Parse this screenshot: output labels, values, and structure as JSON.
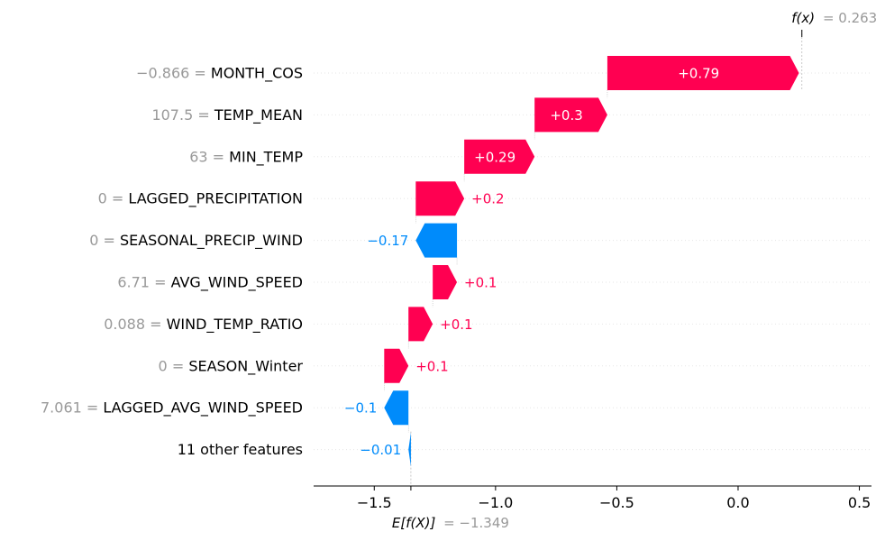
{
  "chart_data": {
    "type": "waterfall",
    "base_value": -1.349,
    "output_value": 0.263,
    "fx_label": "f(x)",
    "fx_value_text": "= 0.263",
    "ex_label": "E[f(X)]",
    "ex_value_text": "= −1.349",
    "xlim": [
      -1.75,
      0.55
    ],
    "xticks": [
      -1.5,
      -1.0,
      -0.5,
      0.0,
      0.5
    ],
    "xtick_labels": [
      "−1.5",
      "−1.0",
      "−0.5",
      "0.0",
      "0.5"
    ],
    "features": [
      {
        "value": "−0.866 =",
        "name": "MONTH_COS",
        "shap": 0.79,
        "label": "+0.79"
      },
      {
        "value": "107.5 =",
        "name": "TEMP_MEAN",
        "shap": 0.3,
        "label": "+0.3"
      },
      {
        "value": "63 =",
        "name": "MIN_TEMP",
        "shap": 0.29,
        "label": "+0.29"
      },
      {
        "value": "0 =",
        "name": "LAGGED_PRECIPITATION",
        "shap": 0.2,
        "label": "+0.2"
      },
      {
        "value": "0 =",
        "name": "SEASONAL_PRECIP_WIND",
        "shap": -0.17,
        "label": "−0.17"
      },
      {
        "value": "6.71 =",
        "name": "AVG_WIND_SPEED",
        "shap": 0.1,
        "label": "+0.1"
      },
      {
        "value": "0.088 =",
        "name": "WIND_TEMP_RATIO",
        "shap": 0.1,
        "label": "+0.1"
      },
      {
        "value": "0 =",
        "name": "SEASON_Winter",
        "shap": 0.1,
        "label": "+0.1"
      },
      {
        "value": "7.061 =",
        "name": "LAGGED_AVG_WIND_SPEED",
        "shap": -0.1,
        "label": "−0.1"
      },
      {
        "value": "",
        "name": "11 other features",
        "shap": -0.01,
        "label": "−0.01"
      }
    ],
    "colors": {
      "positive": "#ff0051",
      "negative": "#008bfb",
      "grey_text": "#999999",
      "grid": "#e6e6e6"
    }
  }
}
